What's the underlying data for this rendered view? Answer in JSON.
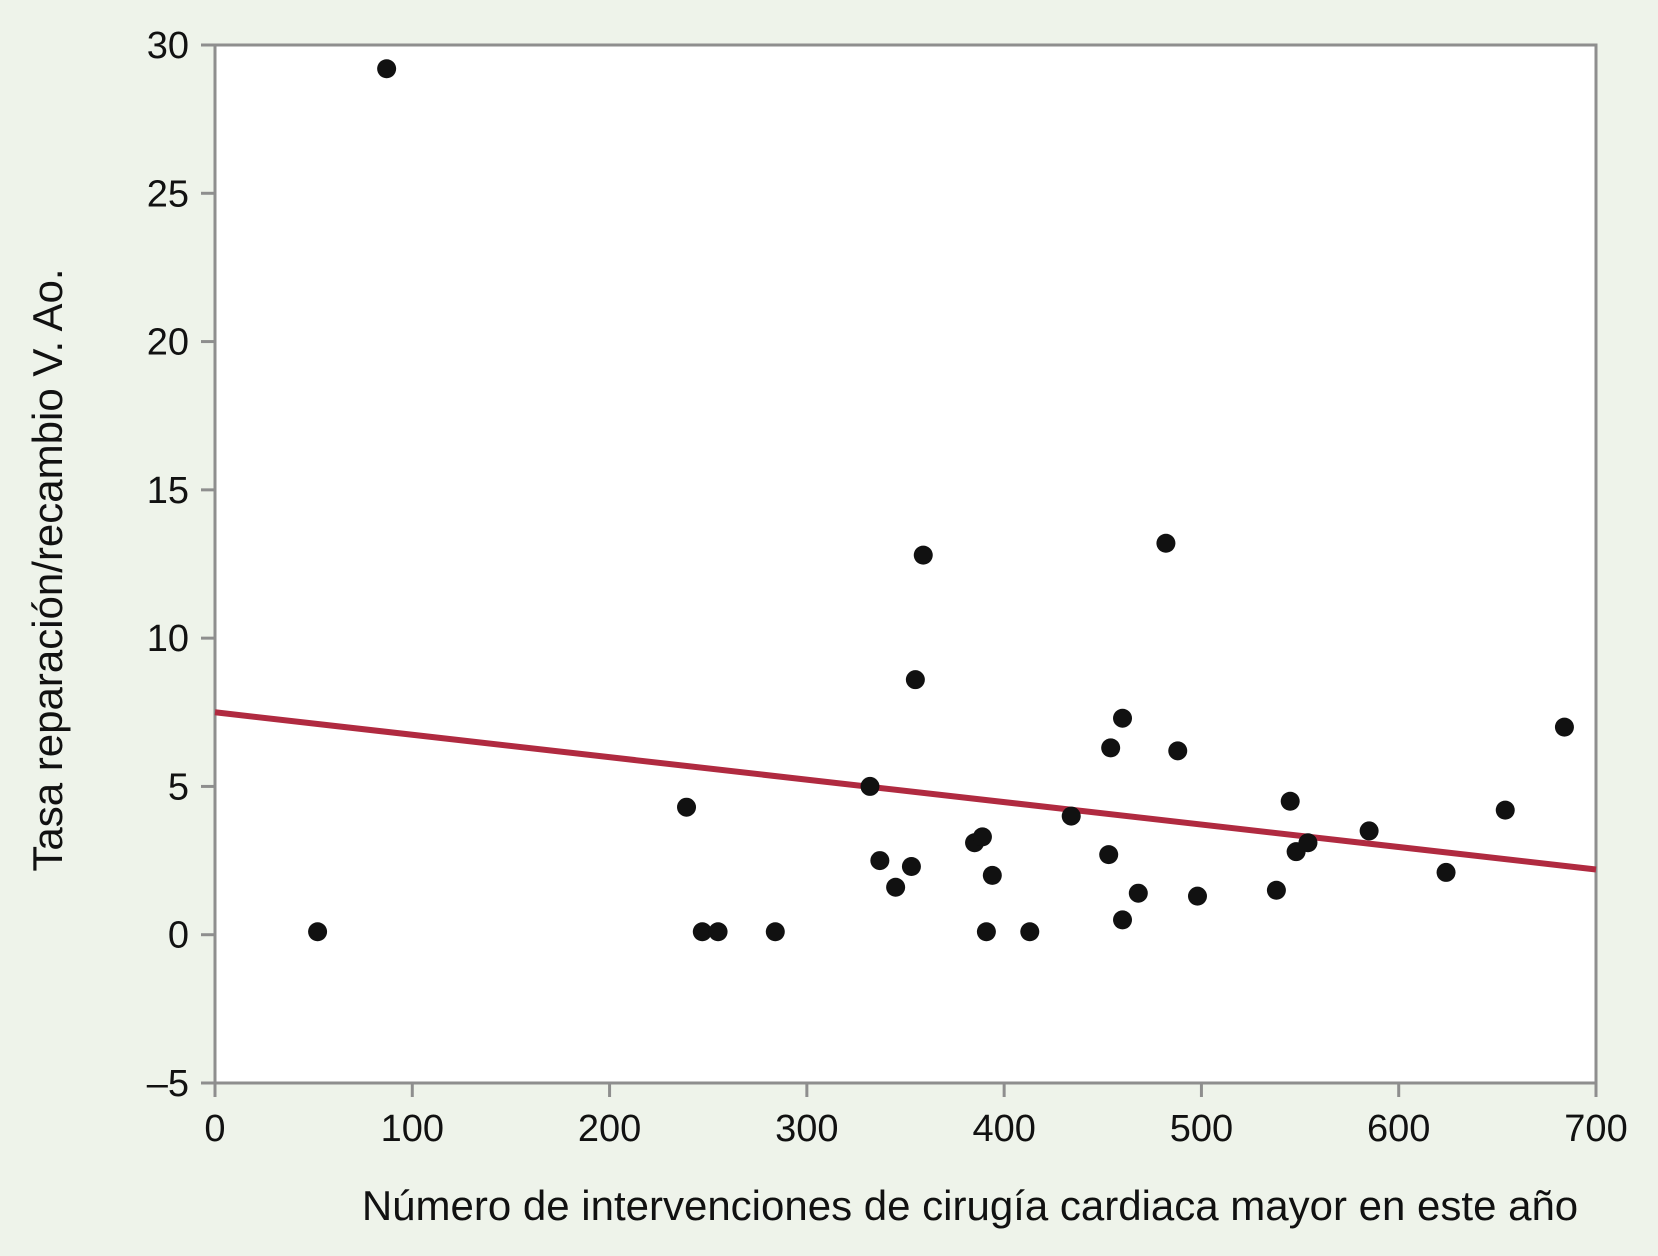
{
  "chart_data": {
    "type": "scatter",
    "title": "",
    "xlabel": "Número de intervenciones de cirugía cardiaca mayor en este año",
    "ylabel": "Tasa reparación/recambio V. Ao.",
    "xlim": [
      0,
      700
    ],
    "ylim": [
      -5,
      30
    ],
    "x_ticks": [
      0,
      100,
      200,
      300,
      400,
      500,
      600,
      700
    ],
    "y_ticks": [
      -5,
      0,
      5,
      10,
      15,
      20,
      25,
      30
    ],
    "x_tick_labels": [
      "0",
      "100",
      "200",
      "300",
      "400",
      "500",
      "600",
      "700"
    ],
    "y_tick_labels": [
      "–5",
      "0",
      "5",
      "10",
      "15",
      "20",
      "25",
      "30"
    ],
    "grid": false,
    "legend": "none",
    "point_color": "#111111",
    "line_color": "#b02a40",
    "points": [
      {
        "x": 52,
        "y": 0.1
      },
      {
        "x": 87,
        "y": 29.2
      },
      {
        "x": 239,
        "y": 4.3
      },
      {
        "x": 247,
        "y": 0.1
      },
      {
        "x": 255,
        "y": 0.1
      },
      {
        "x": 284,
        "y": 0.1
      },
      {
        "x": 332,
        "y": 5.0
      },
      {
        "x": 337,
        "y": 2.5
      },
      {
        "x": 345,
        "y": 1.6
      },
      {
        "x": 353,
        "y": 2.3
      },
      {
        "x": 355,
        "y": 8.6
      },
      {
        "x": 359,
        "y": 12.8
      },
      {
        "x": 385,
        "y": 3.1
      },
      {
        "x": 389,
        "y": 3.3
      },
      {
        "x": 391,
        "y": 0.1
      },
      {
        "x": 394,
        "y": 2.0
      },
      {
        "x": 413,
        "y": 0.1
      },
      {
        "x": 434,
        "y": 4.0
      },
      {
        "x": 453,
        "y": 2.7
      },
      {
        "x": 454,
        "y": 6.3
      },
      {
        "x": 460,
        "y": 7.3
      },
      {
        "x": 460,
        "y": 0.5
      },
      {
        "x": 468,
        "y": 1.4
      },
      {
        "x": 482,
        "y": 13.2
      },
      {
        "x": 488,
        "y": 6.2
      },
      {
        "x": 498,
        "y": 1.3
      },
      {
        "x": 538,
        "y": 1.5
      },
      {
        "x": 545,
        "y": 4.5
      },
      {
        "x": 548,
        "y": 2.8
      },
      {
        "x": 554,
        "y": 3.1
      },
      {
        "x": 585,
        "y": 3.5
      },
      {
        "x": 624,
        "y": 2.1
      },
      {
        "x": 654,
        "y": 4.2
      },
      {
        "x": 684,
        "y": 7.0
      }
    ],
    "trend_line": {
      "x": [
        0,
        700
      ],
      "y": [
        7.5,
        2.2
      ]
    }
  }
}
